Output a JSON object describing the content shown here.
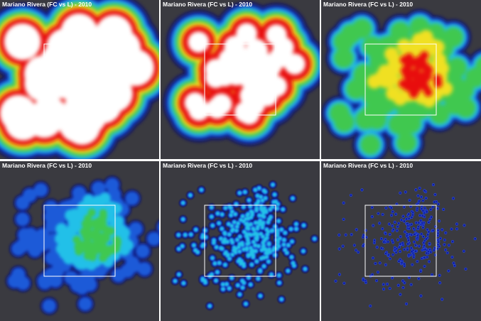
{
  "panels": [
    {
      "title": "Mariano Rivera (FC vs L) - 2010"
    },
    {
      "title": "Mariano Rivera (FC vs L) - 2010"
    },
    {
      "title": "Mariano Rivera (FC vs L) - 2010"
    },
    {
      "title": "Mariano Rivera (FC vs L) - 2010"
    },
    {
      "title": "Mariano Rivera (FC vs L) - 2010"
    },
    {
      "title": "Mariano Rivera (FC vs L) - 2010"
    }
  ]
}
